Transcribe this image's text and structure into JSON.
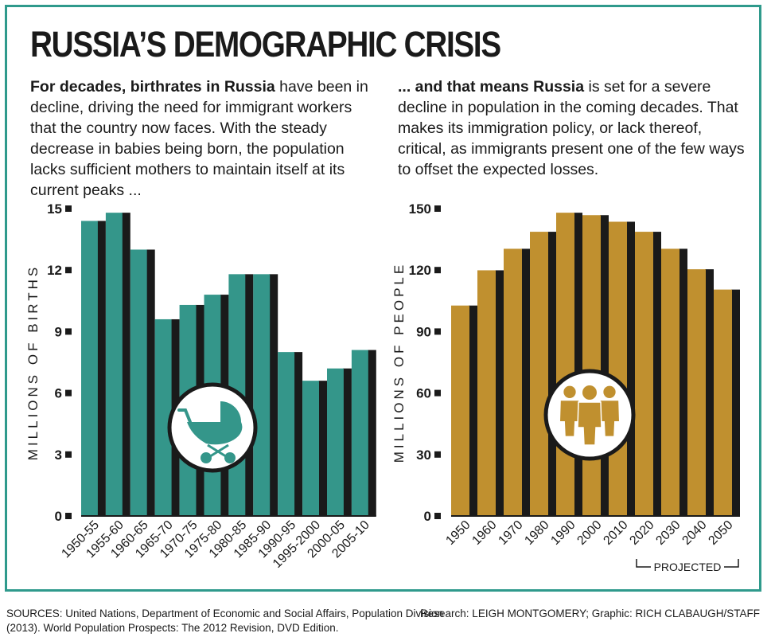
{
  "title": "RUSSIA’S DEMOGRAPHIC CRISIS",
  "intro_left": {
    "bold": "For decades, birthrates in Russia",
    "text": " have been in decline, driving the need for immigrant workers that the country now faces. With the steady decrease in babies being born, the population lacks sufficient mothers to maintain itself at its current peaks ..."
  },
  "intro_right": {
    "bold": "... and that means Russia",
    "text": " is set for a severe decline in population in the coming decades. That makes its immigration policy, or lack thereof, critical, as immigrants present one of the few ways to offset the expected losses."
  },
  "footer": {
    "sources": "SOURCES: United Nations, Department of Economic and Social Affairs, Population Division (2013). World Population Prospects: The 2012 Revision, DVD Edition.",
    "credits": "Research: LEIGH MONTGOMERY; Graphic: RICH CLABAUGH/STAFF"
  },
  "colors": {
    "births_bar": "#34968a",
    "population_bar": "#c0902f",
    "shadow": "#1a1a1a",
    "frame": "#2f9a8c"
  },
  "icons": {
    "births": "baby-carriage-icon",
    "population": "people-group-icon"
  },
  "chart_data": [
    {
      "type": "bar",
      "ylabel": "MILLIONS OF BIRTHS",
      "categories": [
        "1950-55",
        "1955-60",
        "1960-65",
        "1965-70",
        "1970-75",
        "1975-80",
        "1980-85",
        "1985-90",
        "1990-95",
        "1995-2000",
        "2000-05",
        "2005-10"
      ],
      "values": [
        14.4,
        14.8,
        13.0,
        9.6,
        10.3,
        10.8,
        11.8,
        11.8,
        8.0,
        6.6,
        7.2,
        8.1
      ],
      "ylim": [
        0,
        15
      ],
      "yticks": [
        0,
        3,
        6,
        9,
        12,
        15
      ],
      "grid": false
    },
    {
      "type": "bar",
      "ylabel": "MILLIONS OF PEOPLE",
      "categories": [
        "1950",
        "1960",
        "1970",
        "1980",
        "1990",
        "2000",
        "2010",
        "2020",
        "2030",
        "2040",
        "2050"
      ],
      "values": [
        102.7,
        119.9,
        130.4,
        138.7,
        148.0,
        146.8,
        143.6,
        138.7,
        130.4,
        120.4,
        110.5
      ],
      "ylim": [
        0,
        150
      ],
      "yticks": [
        0,
        30,
        60,
        90,
        120,
        150
      ],
      "grid": false,
      "annotation": "PROJECTED",
      "projected_from": "2020"
    }
  ]
}
